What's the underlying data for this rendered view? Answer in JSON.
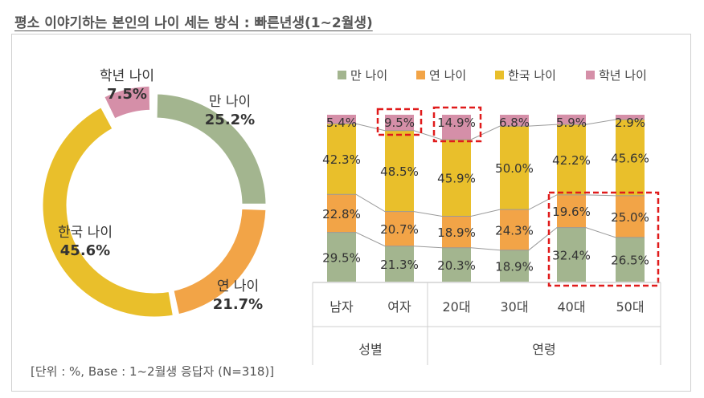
{
  "title": "평소 이야기하는 본인의 나이 세는 방식 : 빠른년생(1~2월생)",
  "footnote": "[단위 : %, Base : 1~2월생 응답자 (N=318)]",
  "colors": {
    "man": "#a3b58f",
    "yeon": "#f2a447",
    "hanguk": "#e9bf2b",
    "haknyeon": "#d58fa8",
    "highlight": "#e01b1b"
  },
  "chart_data": [
    {
      "type": "pie",
      "variant": "donut",
      "title": "",
      "categories": [
        "만 나이",
        "연 나이",
        "한국 나이",
        "학년 나이"
      ],
      "values": [
        25.2,
        21.7,
        45.6,
        7.5
      ],
      "value_labels": [
        "25.2%",
        "21.7%",
        "45.6%",
        "7.5%"
      ],
      "exploded": [
        "학년 나이"
      ]
    },
    {
      "type": "bar",
      "stacked": true,
      "percent_stacked": true,
      "legend": [
        "만 나이",
        "연 나이",
        "한국 나이",
        "학년 나이"
      ],
      "legend_position": "top",
      "categories": [
        "남자",
        "여자",
        "20대",
        "30대",
        "40대",
        "50대"
      ],
      "groups": [
        {
          "label": "성별",
          "categories": [
            "남자",
            "여자"
          ]
        },
        {
          "label": "연령",
          "categories": [
            "20대",
            "30대",
            "40대",
            "50대"
          ]
        }
      ],
      "series": [
        {
          "name": "만 나이",
          "values": [
            29.5,
            21.3,
            20.3,
            18.9,
            32.4,
            26.5
          ],
          "labels": [
            "29.5%",
            "21.3%",
            "20.3%",
            "18.9%",
            "32.4%",
            "26.5%"
          ]
        },
        {
          "name": "연 나이",
          "values": [
            22.8,
            20.7,
            18.9,
            24.3,
            19.6,
            25.0
          ],
          "labels": [
            "22.8%",
            "20.7%",
            "18.9%",
            "24.3%",
            "19.6%",
            "25.0%"
          ]
        },
        {
          "name": "한국 나이",
          "values": [
            42.3,
            48.5,
            45.9,
            50.0,
            42.2,
            45.6
          ],
          "labels": [
            "42.3%",
            "48.5%",
            "45.9%",
            "50.0%",
            "42.2%",
            "45.6%"
          ]
        },
        {
          "name": "학년 나이",
          "values": [
            5.4,
            9.5,
            14.9,
            6.8,
            5.9,
            2.9
          ],
          "labels": [
            "5.4%",
            "9.5%",
            "14.9%",
            "6.8%",
            "5.9%",
            "2.9%"
          ]
        }
      ],
      "series_lines": true,
      "highlighted": [
        {
          "category": "여자",
          "series": "학년 나이"
        },
        {
          "category": "20대",
          "series": "학년 나이"
        },
        {
          "categories": [
            "40대",
            "50대"
          ],
          "series": [
            "만 나이",
            "연 나이"
          ]
        }
      ],
      "ylim": [
        0,
        100
      ]
    }
  ]
}
